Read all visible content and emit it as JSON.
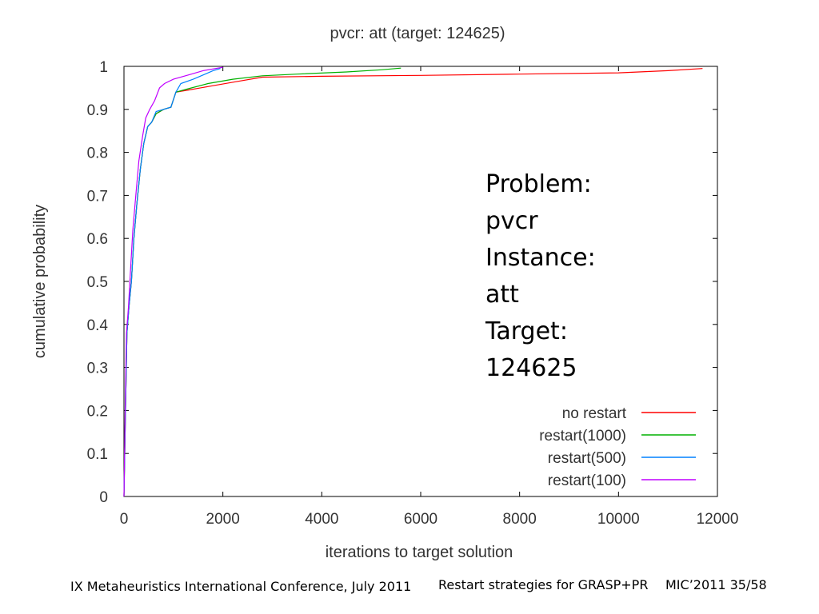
{
  "chart_data": {
    "type": "line",
    "title": "pvcr: att (target: 124625)",
    "xlabel": "iterations to target solution",
    "ylabel": "cumulative probability",
    "xlim": [
      0,
      12000
    ],
    "ylim": [
      0,
      1
    ],
    "xticks": [
      "0",
      "2000",
      "4000",
      "6000",
      "8000",
      "10000",
      "12000"
    ],
    "yticks": [
      "0",
      "0.1",
      "0.2",
      "0.3",
      "0.4",
      "0.5",
      "0.6",
      "0.7",
      "0.8",
      "0.9",
      "1"
    ],
    "legend_position": "bottom-right",
    "series": [
      {
        "name": "no restart",
        "color": "#ff0000",
        "points": [
          [
            0,
            0
          ],
          [
            30,
            0.2
          ],
          [
            60,
            0.38
          ],
          [
            100,
            0.44
          ],
          [
            150,
            0.5
          ],
          [
            200,
            0.6
          ],
          [
            260,
            0.68
          ],
          [
            330,
            0.76
          ],
          [
            400,
            0.82
          ],
          [
            480,
            0.86
          ],
          [
            560,
            0.87
          ],
          [
            650,
            0.89
          ],
          [
            800,
            0.9
          ],
          [
            950,
            0.905
          ],
          [
            1050,
            0.94
          ],
          [
            1300,
            0.945
          ],
          [
            1800,
            0.955
          ],
          [
            2300,
            0.965
          ],
          [
            2800,
            0.975
          ],
          [
            4000,
            0.977
          ],
          [
            6000,
            0.979
          ],
          [
            8000,
            0.982
          ],
          [
            10000,
            0.985
          ],
          [
            11000,
            0.99
          ],
          [
            11700,
            0.995
          ]
        ]
      },
      {
        "name": "restart(1000)",
        "color": "#00b000",
        "points": [
          [
            0,
            0
          ],
          [
            30,
            0.2
          ],
          [
            60,
            0.38
          ],
          [
            100,
            0.44
          ],
          [
            150,
            0.5
          ],
          [
            200,
            0.6
          ],
          [
            260,
            0.68
          ],
          [
            330,
            0.76
          ],
          [
            400,
            0.82
          ],
          [
            480,
            0.86
          ],
          [
            560,
            0.87
          ],
          [
            650,
            0.89
          ],
          [
            800,
            0.9
          ],
          [
            950,
            0.905
          ],
          [
            1050,
            0.94
          ],
          [
            1300,
            0.948
          ],
          [
            1700,
            0.96
          ],
          [
            2200,
            0.97
          ],
          [
            2800,
            0.978
          ],
          [
            3500,
            0.982
          ],
          [
            4500,
            0.987
          ],
          [
            5200,
            0.992
          ],
          [
            5600,
            0.996
          ]
        ]
      },
      {
        "name": "restart(500)",
        "color": "#0080ff",
        "points": [
          [
            0,
            0
          ],
          [
            30,
            0.2
          ],
          [
            60,
            0.38
          ],
          [
            100,
            0.44
          ],
          [
            150,
            0.5
          ],
          [
            200,
            0.6
          ],
          [
            260,
            0.68
          ],
          [
            330,
            0.76
          ],
          [
            400,
            0.82
          ],
          [
            480,
            0.86
          ],
          [
            560,
            0.87
          ],
          [
            650,
            0.895
          ],
          [
            800,
            0.9
          ],
          [
            950,
            0.905
          ],
          [
            1050,
            0.94
          ],
          [
            1150,
            0.96
          ],
          [
            1400,
            0.97
          ],
          [
            1600,
            0.98
          ],
          [
            1800,
            0.99
          ],
          [
            1950,
            0.995
          ]
        ]
      },
      {
        "name": "restart(100)",
        "color": "#c000ff",
        "points": [
          [
            0,
            0
          ],
          [
            25,
            0.2
          ],
          [
            50,
            0.38
          ],
          [
            90,
            0.44
          ],
          [
            130,
            0.52
          ],
          [
            180,
            0.62
          ],
          [
            240,
            0.7
          ],
          [
            300,
            0.78
          ],
          [
            380,
            0.84
          ],
          [
            440,
            0.88
          ],
          [
            520,
            0.9
          ],
          [
            620,
            0.92
          ],
          [
            720,
            0.95
          ],
          [
            820,
            0.96
          ],
          [
            1000,
            0.97
          ],
          [
            1300,
            0.98
          ],
          [
            1600,
            0.99
          ],
          [
            1900,
            0.996
          ],
          [
            2000,
            0.998
          ]
        ]
      }
    ]
  },
  "annotation": {
    "lines": [
      "Problem:",
      "pvcr",
      "Instance:",
      "att",
      "Target:",
      "124625"
    ]
  },
  "footer": {
    "conference": "IX Metaheuristics International Conference, July 2011",
    "topic": "Restart strategies for GRASP+PR",
    "slide": "MIC’2011 35/58"
  }
}
